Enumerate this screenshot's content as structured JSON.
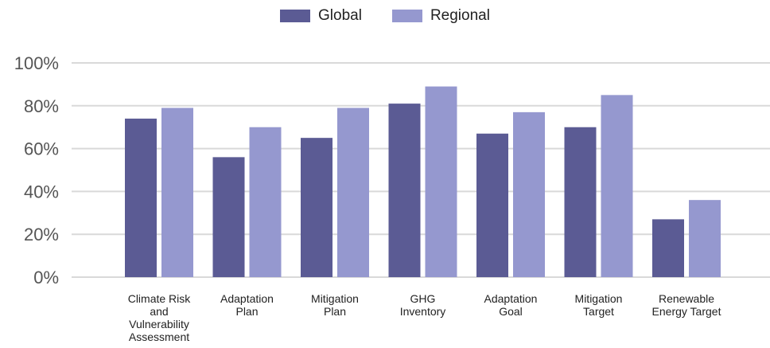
{
  "chart_data": {
    "type": "bar",
    "categories": [
      [
        "Climate Risk",
        "and",
        "Vulnerability",
        "Assessment"
      ],
      [
        "Adaptation",
        "Plan"
      ],
      [
        "Mitigation",
        "Plan"
      ],
      [
        "GHG",
        "Inventory"
      ],
      [
        "Adaptation",
        "Goal"
      ],
      [
        "Mitigation",
        "Target"
      ],
      [
        "Renewable",
        "Energy Target"
      ]
    ],
    "series": [
      {
        "name": "Global",
        "color": "#5b5b94",
        "values": [
          74,
          56,
          65,
          81,
          67,
          70,
          27
        ]
      },
      {
        "name": "Regional",
        "color": "#9598cf",
        "values": [
          79,
          70,
          79,
          89,
          77,
          85,
          36
        ]
      }
    ],
    "yticks": [
      "0%",
      "20%",
      "40%",
      "60%",
      "80%",
      "100%"
    ],
    "ylim": [
      0,
      100
    ],
    "grid": true,
    "legend_position": "top-center"
  }
}
